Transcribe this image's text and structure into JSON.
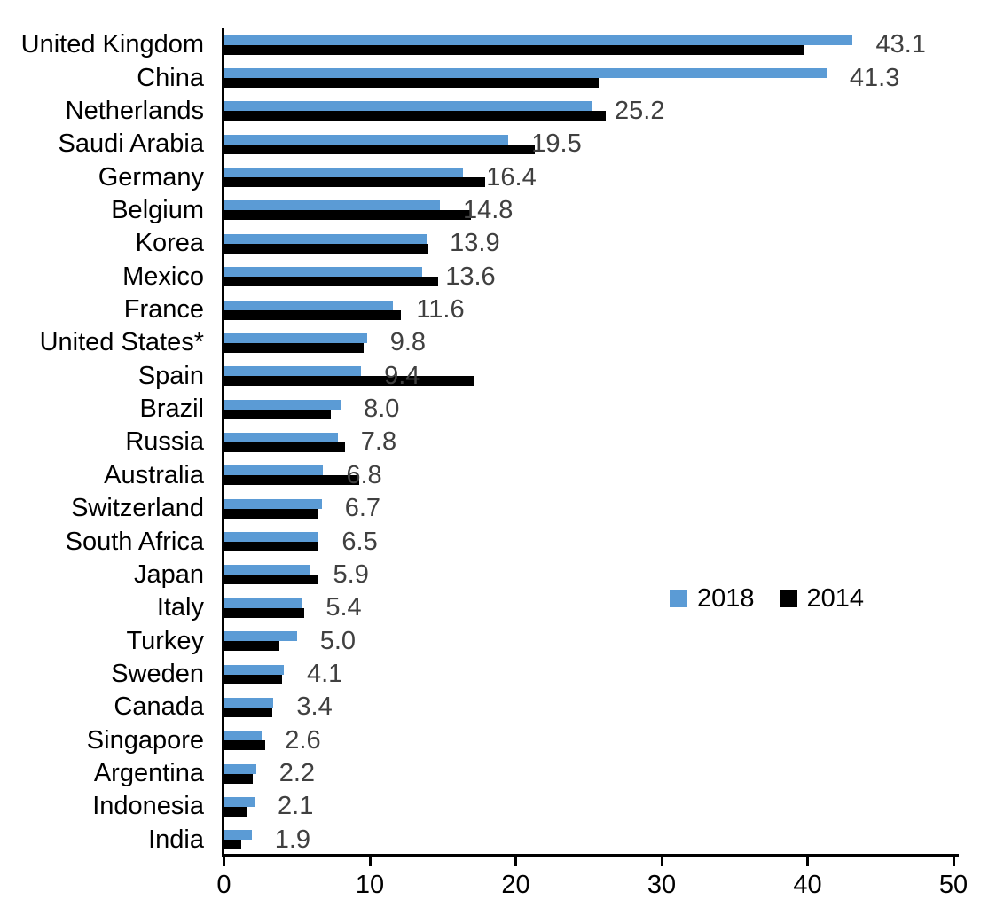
{
  "chart_data": {
    "type": "bar",
    "orientation": "horizontal",
    "title": "",
    "categories": [
      "United Kingdom",
      "China",
      "Netherlands",
      "Saudi Arabia",
      "Germany",
      "Belgium",
      "Korea",
      "Mexico",
      "France",
      "United States*",
      "Spain",
      "Brazil",
      "Russia",
      "Australia",
      "Switzerland",
      "South Africa",
      "Japan",
      "Italy",
      "Turkey",
      "Sweden",
      "Canada",
      "Singapore",
      "Argentina",
      "Indonesia",
      "India"
    ],
    "series": [
      {
        "name": "2018",
        "color": "#5B9BD5",
        "values": [
          43.1,
          41.3,
          25.2,
          19.5,
          16.4,
          14.8,
          13.9,
          13.6,
          11.6,
          9.8,
          9.4,
          8.0,
          7.8,
          6.8,
          6.7,
          6.5,
          5.9,
          5.4,
          5.0,
          4.1,
          3.4,
          2.6,
          2.2,
          2.1,
          1.9
        ],
        "value_labels": [
          "43.1",
          "41.3",
          "25.2",
          "19.5",
          "16.4",
          "14.8",
          "13.9",
          "13.6",
          "11.6",
          "9.8",
          "9.4",
          "8.0",
          "7.8",
          "6.8",
          "6.7",
          "6.5",
          "5.9",
          "5.4",
          "5.0",
          "4.1",
          "3.4",
          "2.6",
          "2.2",
          "2.1",
          "1.9"
        ]
      },
      {
        "name": "2014",
        "color": "#000000",
        "values": [
          39.7,
          25.7,
          26.2,
          21.3,
          17.9,
          16.9,
          14.0,
          14.7,
          12.1,
          9.6,
          17.1,
          7.3,
          8.3,
          9.3,
          6.4,
          6.4,
          6.5,
          5.5,
          3.8,
          4.0,
          3.3,
          2.8,
          2.0,
          1.6,
          1.2
        ]
      }
    ],
    "xlim": [
      0,
      50
    ],
    "x_tick_values": [
      0,
      10,
      20,
      30,
      40,
      50
    ],
    "x_tick_labels": [
      "0",
      "10",
      "20",
      "30",
      "40",
      "50"
    ],
    "legend": {
      "position": "center-right",
      "entries": [
        {
          "label": "2018",
          "color": "#5B9BD5"
        },
        {
          "label": "2014",
          "color": "#000000"
        }
      ]
    },
    "grid": false,
    "styles": {
      "value_label_color": "#404040",
      "axis_color": "#000000",
      "background": "#FFFFFF"
    }
  }
}
